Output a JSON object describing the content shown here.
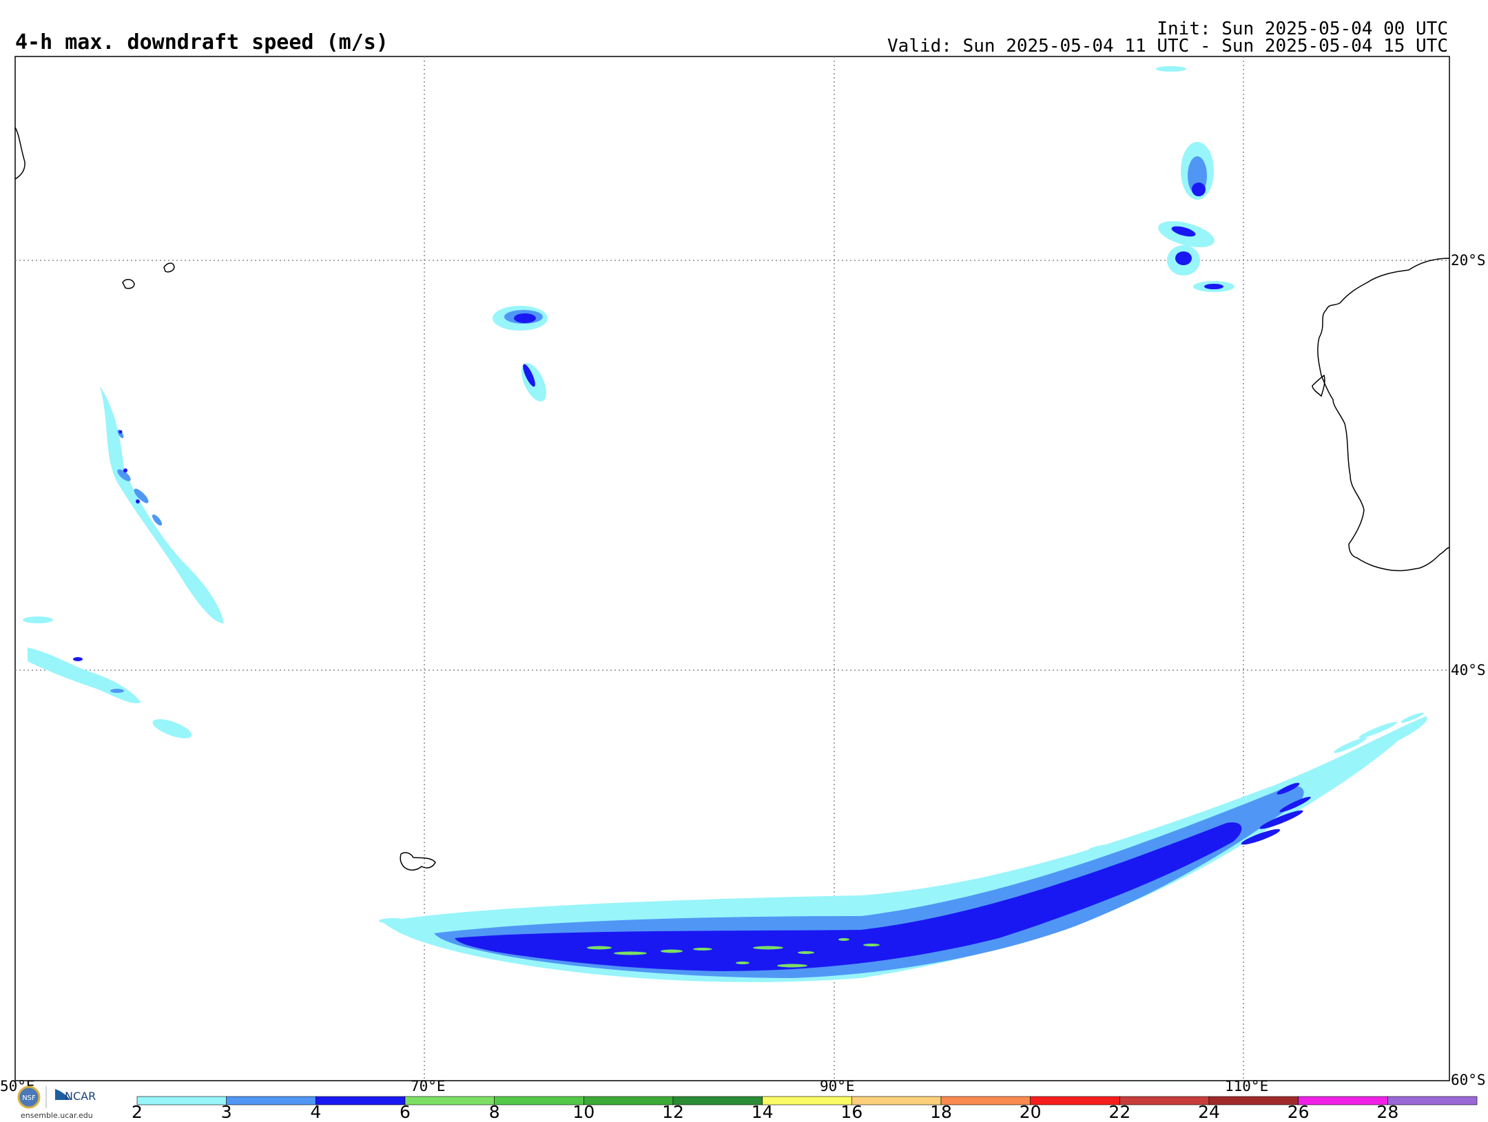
{
  "title": "4-h max. downdraft speed (m/s)",
  "init_text": "Init: Sun 2025-05-04 00 UTC",
  "valid_text": "Valid: Sun 2025-05-04 11 UTC - Sun 2025-05-04 15 UTC",
  "lon_labels": [
    "50°E",
    "70°E",
    "90°E",
    "110°E"
  ],
  "lat_labels": [
    "20°S",
    "40°S",
    "60°S"
  ],
  "logo": {
    "nsf_text": "NSF",
    "ncar_text": "NCAR",
    "url": "ensemble.ucar.edu"
  },
  "colorbar": {
    "labels": [
      "2",
      "3",
      "4",
      "6",
      "8",
      "10",
      "12",
      "14",
      "16",
      "18",
      "20",
      "22",
      "24",
      "26",
      "28"
    ],
    "colors": [
      "#98f5fa",
      "#5097f5",
      "#1a18f2",
      "#7dde64",
      "#55c84a",
      "#3caa37",
      "#2a8c34",
      "#fafa64",
      "#fcd07a",
      "#fa8a50",
      "#f81d1d",
      "#c83c3c",
      "#a02a2a",
      "#f020e6",
      "#9a68d6"
    ]
  },
  "colors": {
    "coastline": "#000000",
    "gridline": "#888888",
    "frame": "#000000"
  }
}
